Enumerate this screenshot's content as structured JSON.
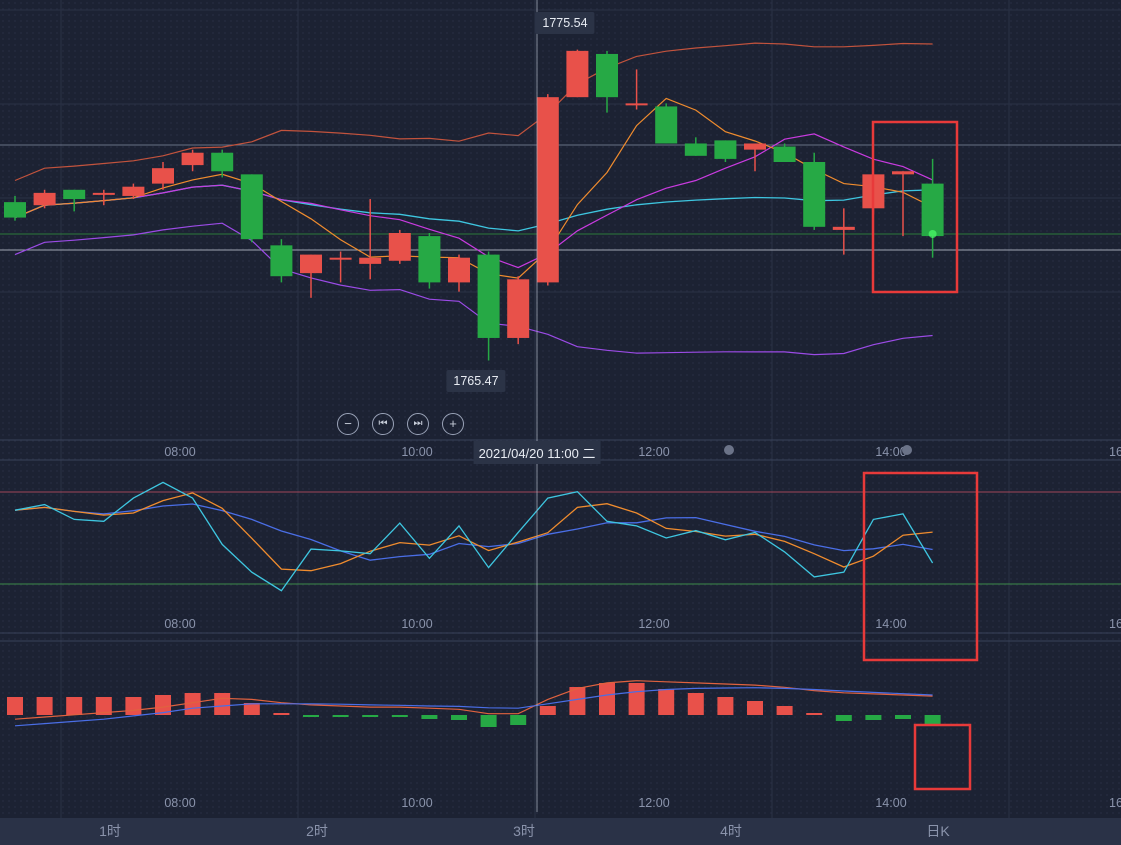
{
  "chart_data": {
    "type": "candlestick",
    "time_axis": {
      "ticks": [
        "08:00",
        "10:00",
        "12:00",
        "14:00",
        "16"
      ],
      "crosshair_label": "2021/04/20 11:00 二"
    },
    "price_panel": {
      "high_label": "1775.54",
      "low_label": "1765.47",
      "candles": [
        {
          "o": 1770.6,
          "c": 1770.1,
          "h": 1770.8,
          "l": 1770.0
        },
        {
          "o": 1770.5,
          "c": 1770.9,
          "h": 1771.0,
          "l": 1770.4
        },
        {
          "o": 1771.0,
          "c": 1770.7,
          "h": 1771.0,
          "l": 1770.3
        },
        {
          "o": 1770.9,
          "c": 1770.9,
          "h": 1771.0,
          "l": 1770.5
        },
        {
          "o": 1770.8,
          "c": 1771.1,
          "h": 1771.2,
          "l": 1770.7
        },
        {
          "o": 1771.2,
          "c": 1771.7,
          "h": 1771.9,
          "l": 1771.0
        },
        {
          "o": 1771.8,
          "c": 1772.2,
          "h": 1772.3,
          "l": 1771.6
        },
        {
          "o": 1772.2,
          "c": 1771.6,
          "h": 1772.3,
          "l": 1771.4
        },
        {
          "o": 1771.5,
          "c": 1769.4,
          "h": 1771.5,
          "l": 1769.3
        },
        {
          "o": 1769.2,
          "c": 1768.2,
          "h": 1769.4,
          "l": 1768.0
        },
        {
          "o": 1768.3,
          "c": 1768.9,
          "h": 1768.9,
          "l": 1767.5
        },
        {
          "o": 1768.8,
          "c": 1768.8,
          "h": 1769.0,
          "l": 1768.0
        },
        {
          "o": 1768.6,
          "c": 1768.8,
          "h": 1770.7,
          "l": 1768.1
        },
        {
          "o": 1768.7,
          "c": 1769.6,
          "h": 1769.7,
          "l": 1768.6
        },
        {
          "o": 1769.5,
          "c": 1768.0,
          "h": 1769.6,
          "l": 1767.8
        },
        {
          "o": 1768.0,
          "c": 1768.8,
          "h": 1768.9,
          "l": 1767.7
        },
        {
          "o": 1768.9,
          "c": 1766.2,
          "h": 1769.0,
          "l": 1765.47
        },
        {
          "o": 1766.2,
          "c": 1768.1,
          "h": 1768.2,
          "l": 1766.0
        },
        {
          "o": 1768.0,
          "c": 1774.0,
          "h": 1774.1,
          "l": 1767.9
        },
        {
          "o": 1774.0,
          "c": 1775.5,
          "h": 1775.54,
          "l": 1774.0
        },
        {
          "o": 1775.4,
          "c": 1774.0,
          "h": 1775.5,
          "l": 1773.5
        },
        {
          "o": 1773.8,
          "c": 1773.8,
          "h": 1774.9,
          "l": 1773.6
        },
        {
          "o": 1773.7,
          "c": 1772.5,
          "h": 1773.8,
          "l": 1772.5
        },
        {
          "o": 1772.5,
          "c": 1772.1,
          "h": 1772.7,
          "l": 1772.1
        },
        {
          "o": 1772.6,
          "c": 1772.0,
          "h": 1772.6,
          "l": 1771.9
        },
        {
          "o": 1772.3,
          "c": 1772.5,
          "h": 1772.5,
          "l": 1771.6
        },
        {
          "o": 1772.4,
          "c": 1771.9,
          "h": 1772.5,
          "l": 1771.9
        },
        {
          "o": 1771.9,
          "c": 1769.8,
          "h": 1772.2,
          "l": 1769.7
        },
        {
          "o": 1769.7,
          "c": 1769.8,
          "h": 1770.4,
          "l": 1768.9
        },
        {
          "o": 1770.4,
          "c": 1771.5,
          "h": 1771.5,
          "l": 1770.2
        },
        {
          "o": 1771.5,
          "c": 1771.6,
          "h": 1771.6,
          "l": 1769.5
        },
        {
          "o": 1771.2,
          "c": 1769.5,
          "h": 1772.0,
          "l": 1768.8
        }
      ]
    },
    "tabs": [
      "1时",
      "2时",
      "3时",
      "4时",
      "日K"
    ],
    "colors": {
      "up": "#e8514a",
      "down": "#26a945",
      "cyan": "#3ec6e0",
      "orange": "#f08c2e",
      "blue": "#4a6ee6",
      "magenta": "#c93be0",
      "purple": "#9b4be6",
      "highlight": "#e83a3a"
    }
  }
}
